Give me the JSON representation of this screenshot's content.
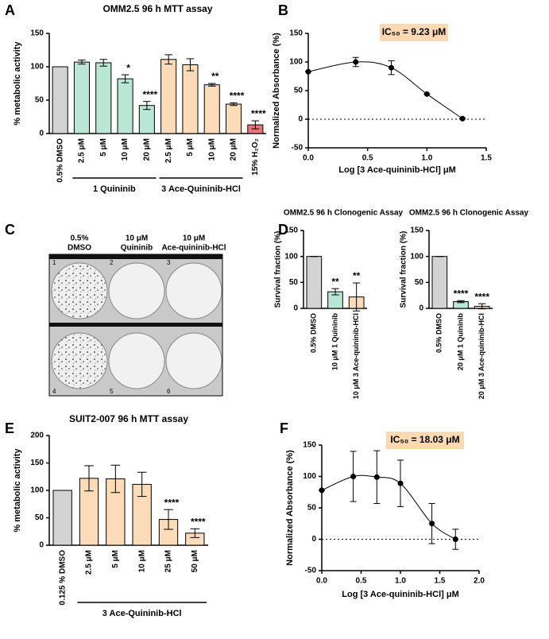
{
  "chart_data": [
    {
      "type": "bar",
      "panel": "A",
      "title": "OMM2.5 96 h MTT assay",
      "y_label": "% metabolic activity",
      "categories": [
        "0.5% DMSO",
        "2.5 μM",
        "5 μM",
        "10 μM",
        "20 μM",
        "2.5 μM",
        "5 μM",
        "10 μM",
        "20 μM",
        "15% H₂O₂"
      ],
      "values": [
        100,
        107,
        106,
        82,
        42,
        111,
        103,
        73,
        44,
        13
      ],
      "errors": [
        0,
        3,
        5,
        6,
        6,
        7,
        9,
        2,
        2,
        6
      ],
      "colors": [
        "#d3d3d3",
        "#b9e6d5",
        "#b9e6d5",
        "#b9e6d5",
        "#b9e6d5",
        "#fcdcb8",
        "#fcdcb8",
        "#fcdcb8",
        "#fcdcb8",
        "#e8757a"
      ],
      "significance": [
        null,
        null,
        null,
        "*",
        "****",
        null,
        null,
        "**",
        "****",
        "****"
      ],
      "group_labels": [
        "1 Quininib",
        "3 Ace-Quininib-HCl"
      ],
      "ylim": [
        0,
        150
      ],
      "yticks": [
        0,
        50,
        100,
        150
      ]
    },
    {
      "type": "line",
      "panel": "B",
      "y_label": "Normalized Absorbance (%)",
      "x_label": "Log [3 Ace-quininib-HCl] μM",
      "annotation": "IC₅₀ = 9.23 μM",
      "x": [
        0,
        0.4,
        0.7,
        1.0,
        1.3
      ],
      "values": [
        83,
        100,
        90,
        44,
        1
      ],
      "errors": [
        0,
        8,
        12,
        0,
        0
      ],
      "color": "#000000",
      "xlim": [
        0,
        1.5
      ],
      "xticks": [
        {
          "value": 0,
          "label": "0.0"
        },
        {
          "value": 0.5,
          "label": "0.5"
        },
        {
          "value": 1,
          "label": "1.0"
        },
        {
          "value": 1.5,
          "label": "1.5"
        }
      ],
      "ylim": [
        -50,
        150
      ],
      "yticks": [
        -50,
        0,
        50,
        100,
        150
      ],
      "reference_line": 0
    },
    {
      "type": "bar",
      "panel": "D",
      "title": "OMM2.5 96 h Clonogenic Assay",
      "y_label": "Survival fraction (%)",
      "categories": [
        "0.5% DMSO",
        "10 μM 1 Quininib",
        "10 μM 3 Ace-quininib-HCl"
      ],
      "values": [
        100,
        32,
        22
      ],
      "errors": [
        0,
        6,
        27
      ],
      "colors": [
        "#d3d3d3",
        "#b9e6d5",
        "#fcdcb8"
      ],
      "significance": [
        null,
        "**",
        "**"
      ],
      "ylim": [
        0,
        150
      ],
      "yticks": [
        0,
        50,
        100,
        150
      ]
    },
    {
      "type": "bar",
      "title": "OMM2.5 96 h Clonogenic Assay",
      "y_label": "Survival fraction (%)",
      "categories": [
        "0.5% DMSO",
        "20 μM 1 Quininib",
        "20 μM 3 Ace-quininib-HCl"
      ],
      "values": [
        100,
        13,
        4
      ],
      "errors": [
        0,
        2,
        5
      ],
      "colors": [
        "#d3d3d3",
        "#b9e6d5",
        "#fcdcb8"
      ],
      "significance": [
        null,
        "****",
        "****"
      ],
      "ylim": [
        0,
        150
      ],
      "yticks": [
        0,
        50,
        100,
        150
      ]
    },
    {
      "type": "bar",
      "panel": "E",
      "title": "SUIT2-007 96 h MTT assay",
      "y_label": "% metabolic activity",
      "categories": [
        "0.125 % DMSO",
        "2.5 μM",
        "5 μM",
        "10 μM",
        "25 μM",
        "50 μM"
      ],
      "values": [
        100,
        122,
        121,
        111,
        47,
        22
      ],
      "errors": [
        0,
        23,
        25,
        22,
        18,
        8
      ],
      "colors": [
        "#d3d3d3",
        "#fcdcb8",
        "#fcdcb8",
        "#fcdcb8",
        "#fcdcb8",
        "#fcdcb8"
      ],
      "significance": [
        null,
        null,
        null,
        null,
        "****",
        "****"
      ],
      "group_labels": [
        "3 Ace-Quininib-HCl"
      ],
      "ylim": [
        0,
        200
      ],
      "yticks": [
        0,
        50,
        100,
        150,
        200
      ]
    },
    {
      "type": "line",
      "panel": "F",
      "y_label": "Normalized Absorbance (%)",
      "x_label": "Log [3 Ace-quininib-HCl] μM",
      "annotation": "IC₅₀ = 18.03 μM",
      "x": [
        0,
        0.4,
        0.7,
        1.0,
        1.4,
        1.7
      ],
      "values": [
        78,
        100,
        99,
        89,
        25,
        0
      ],
      "errors": [
        0,
        40,
        42,
        37,
        32,
        16
      ],
      "color": "#000000",
      "xlim": [
        0,
        2
      ],
      "xticks": [
        {
          "value": 0,
          "label": "0.0"
        },
        {
          "value": 0.5,
          "label": "0.5"
        },
        {
          "value": 1,
          "label": "1.0"
        },
        {
          "value": 1.5,
          "label": "1.5"
        },
        {
          "value": 2,
          "label": "2.0"
        }
      ],
      "ylim": [
        -50,
        150
      ],
      "yticks": [
        -50,
        0,
        50,
        100,
        150
      ],
      "reference_line": 0
    }
  ],
  "photo_panel": {
    "panel": "C",
    "column_labels": [
      [
        "0.5%",
        "DMSO"
      ],
      [
        "10 μM",
        "Quininib"
      ],
      [
        "10 μM",
        "Ace-quininib-HCl"
      ]
    ],
    "well_numbers": [
      "1",
      "2",
      "3",
      "4",
      "5",
      "6"
    ]
  }
}
